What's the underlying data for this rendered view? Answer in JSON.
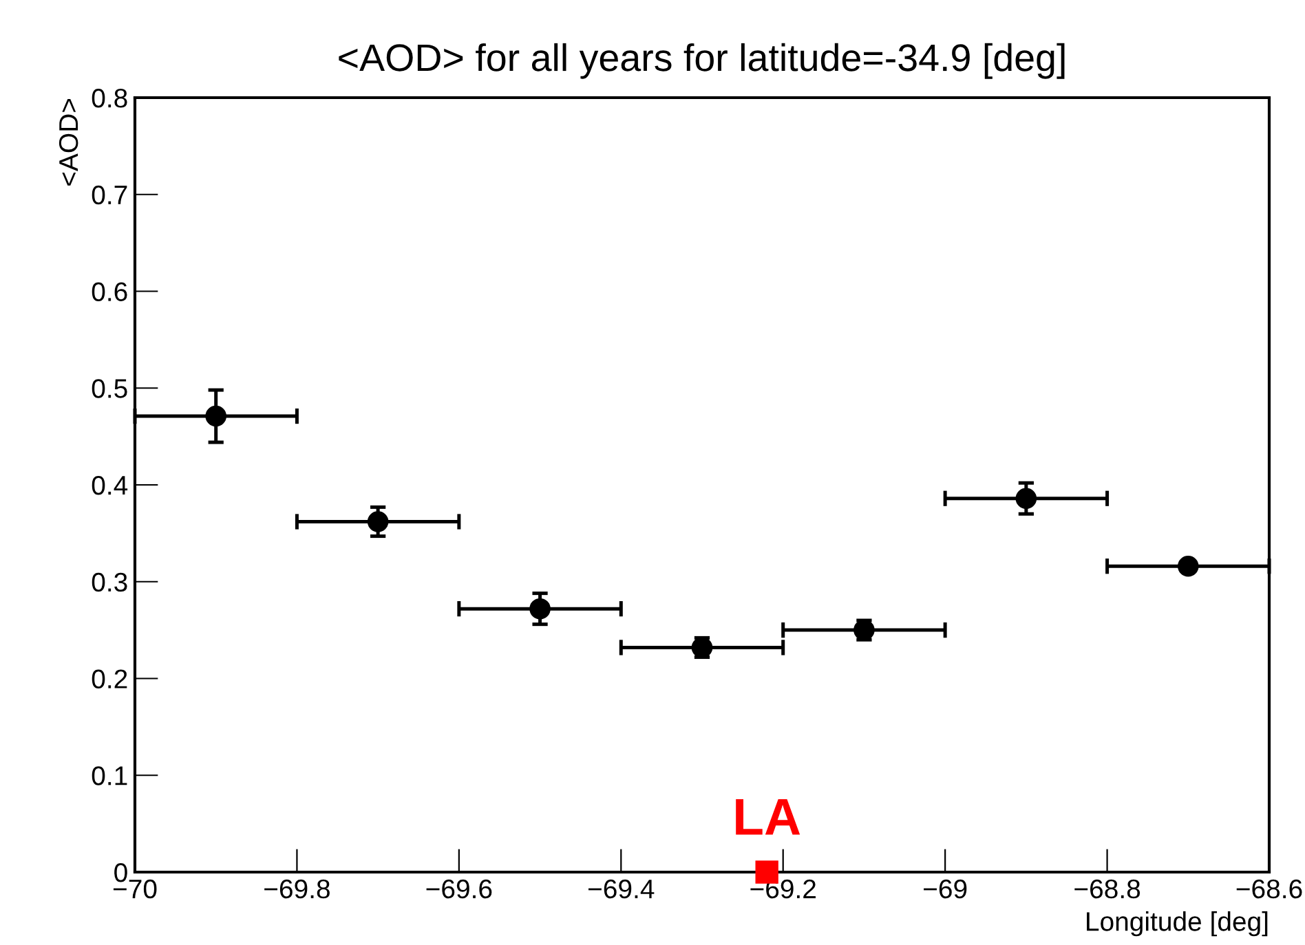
{
  "chart_data": {
    "type": "scatter",
    "title": "<AOD> for all years for latitude=-34.9 [deg]",
    "xlabel": "Longitude [deg]",
    "ylabel": "<AOD>",
    "xlim": [
      -70,
      -68.6
    ],
    "xticks": [
      {
        "value": -70,
        "label": "−70"
      },
      {
        "value": -69.8,
        "label": "−69.8"
      },
      {
        "value": -69.6,
        "label": "−69.6"
      },
      {
        "value": -69.4,
        "label": "−69.4"
      },
      {
        "value": -69.2,
        "label": "−69.2"
      },
      {
        "value": -69,
        "label": "−69"
      },
      {
        "value": -68.8,
        "label": "−68.8"
      },
      {
        "value": -68.6,
        "label": "−68.6"
      }
    ],
    "ylim": [
      0,
      0.8
    ],
    "yticks": [
      0,
      0.1,
      0.2,
      0.3,
      0.4,
      0.5,
      0.6,
      0.7,
      0.8
    ],
    "grid": false,
    "legend": false,
    "series": [
      {
        "color": "#000000",
        "marker": "circle",
        "x": [
          -69.9,
          -69.7,
          -69.5,
          -69.3,
          -69.1,
          -68.9,
          -68.7
        ],
        "values": [
          0.471,
          0.362,
          0.272,
          0.232,
          0.25,
          0.386,
          0.316
        ],
        "errors": [
          0.027,
          0.015,
          0.016,
          0.01,
          0.01,
          0.016,
          0.005
        ],
        "xerrors": [
          0.1,
          0.1,
          0.1,
          0.1,
          0.1,
          0.1,
          0.1
        ]
      },
      {
        "name": "LA",
        "color": "#ff0000",
        "marker": "square",
        "x": [
          -69.22
        ],
        "values": [
          0
        ]
      }
    ]
  }
}
